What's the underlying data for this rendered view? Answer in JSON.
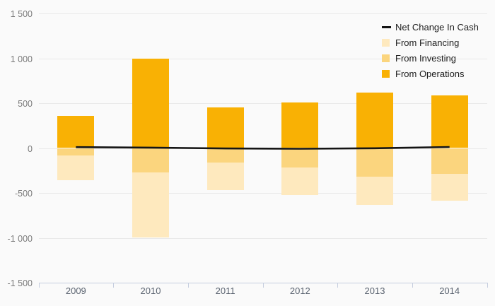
{
  "chart_data": {
    "type": "bar",
    "subtype": "stacked-bar-with-line",
    "title": "",
    "categories": [
      "2009",
      "2010",
      "2011",
      "2012",
      "2013",
      "2014"
    ],
    "series": [
      {
        "name": "Net Change In Cash",
        "kind": "line",
        "color": "#141414",
        "values": [
          10,
          5,
          -5,
          -8,
          -2,
          12
        ]
      },
      {
        "name": "From Financing",
        "kind": "bar",
        "color": "#FEE9BE",
        "values": [
          -280,
          -730,
          -305,
          -300,
          -315,
          -300
        ]
      },
      {
        "name": "From Investing",
        "kind": "bar",
        "color": "#FBD57E",
        "values": [
          -80,
          -270,
          -160,
          -220,
          -320,
          -290
        ]
      },
      {
        "name": "From Operations",
        "kind": "bar",
        "color": "#F9B104",
        "values": [
          355,
          1000,
          455,
          510,
          620,
          590
        ]
      }
    ],
    "negative_stack_order": [
      "From Investing",
      "From Financing"
    ],
    "xlabel": "",
    "ylabel": "",
    "ylim": [
      -1500,
      1500
    ],
    "yticks": {
      "values": [
        1500,
        1000,
        500,
        0,
        -500,
        -1000,
        -1500
      ],
      "labels": [
        "1 500",
        "1 000",
        "500",
        "0",
        "-500",
        "-1 000",
        "-1 500"
      ]
    },
    "grid": "horizontal",
    "legend_position": "top-right",
    "colors": {
      "background": "#FAFAFA",
      "gridline": "#E9E9E9",
      "axis": "#C6CEDF",
      "ytick_label": "#7A7A7A",
      "xtick_label": "#5A6370",
      "legend_text": "#1D1D1D"
    }
  }
}
